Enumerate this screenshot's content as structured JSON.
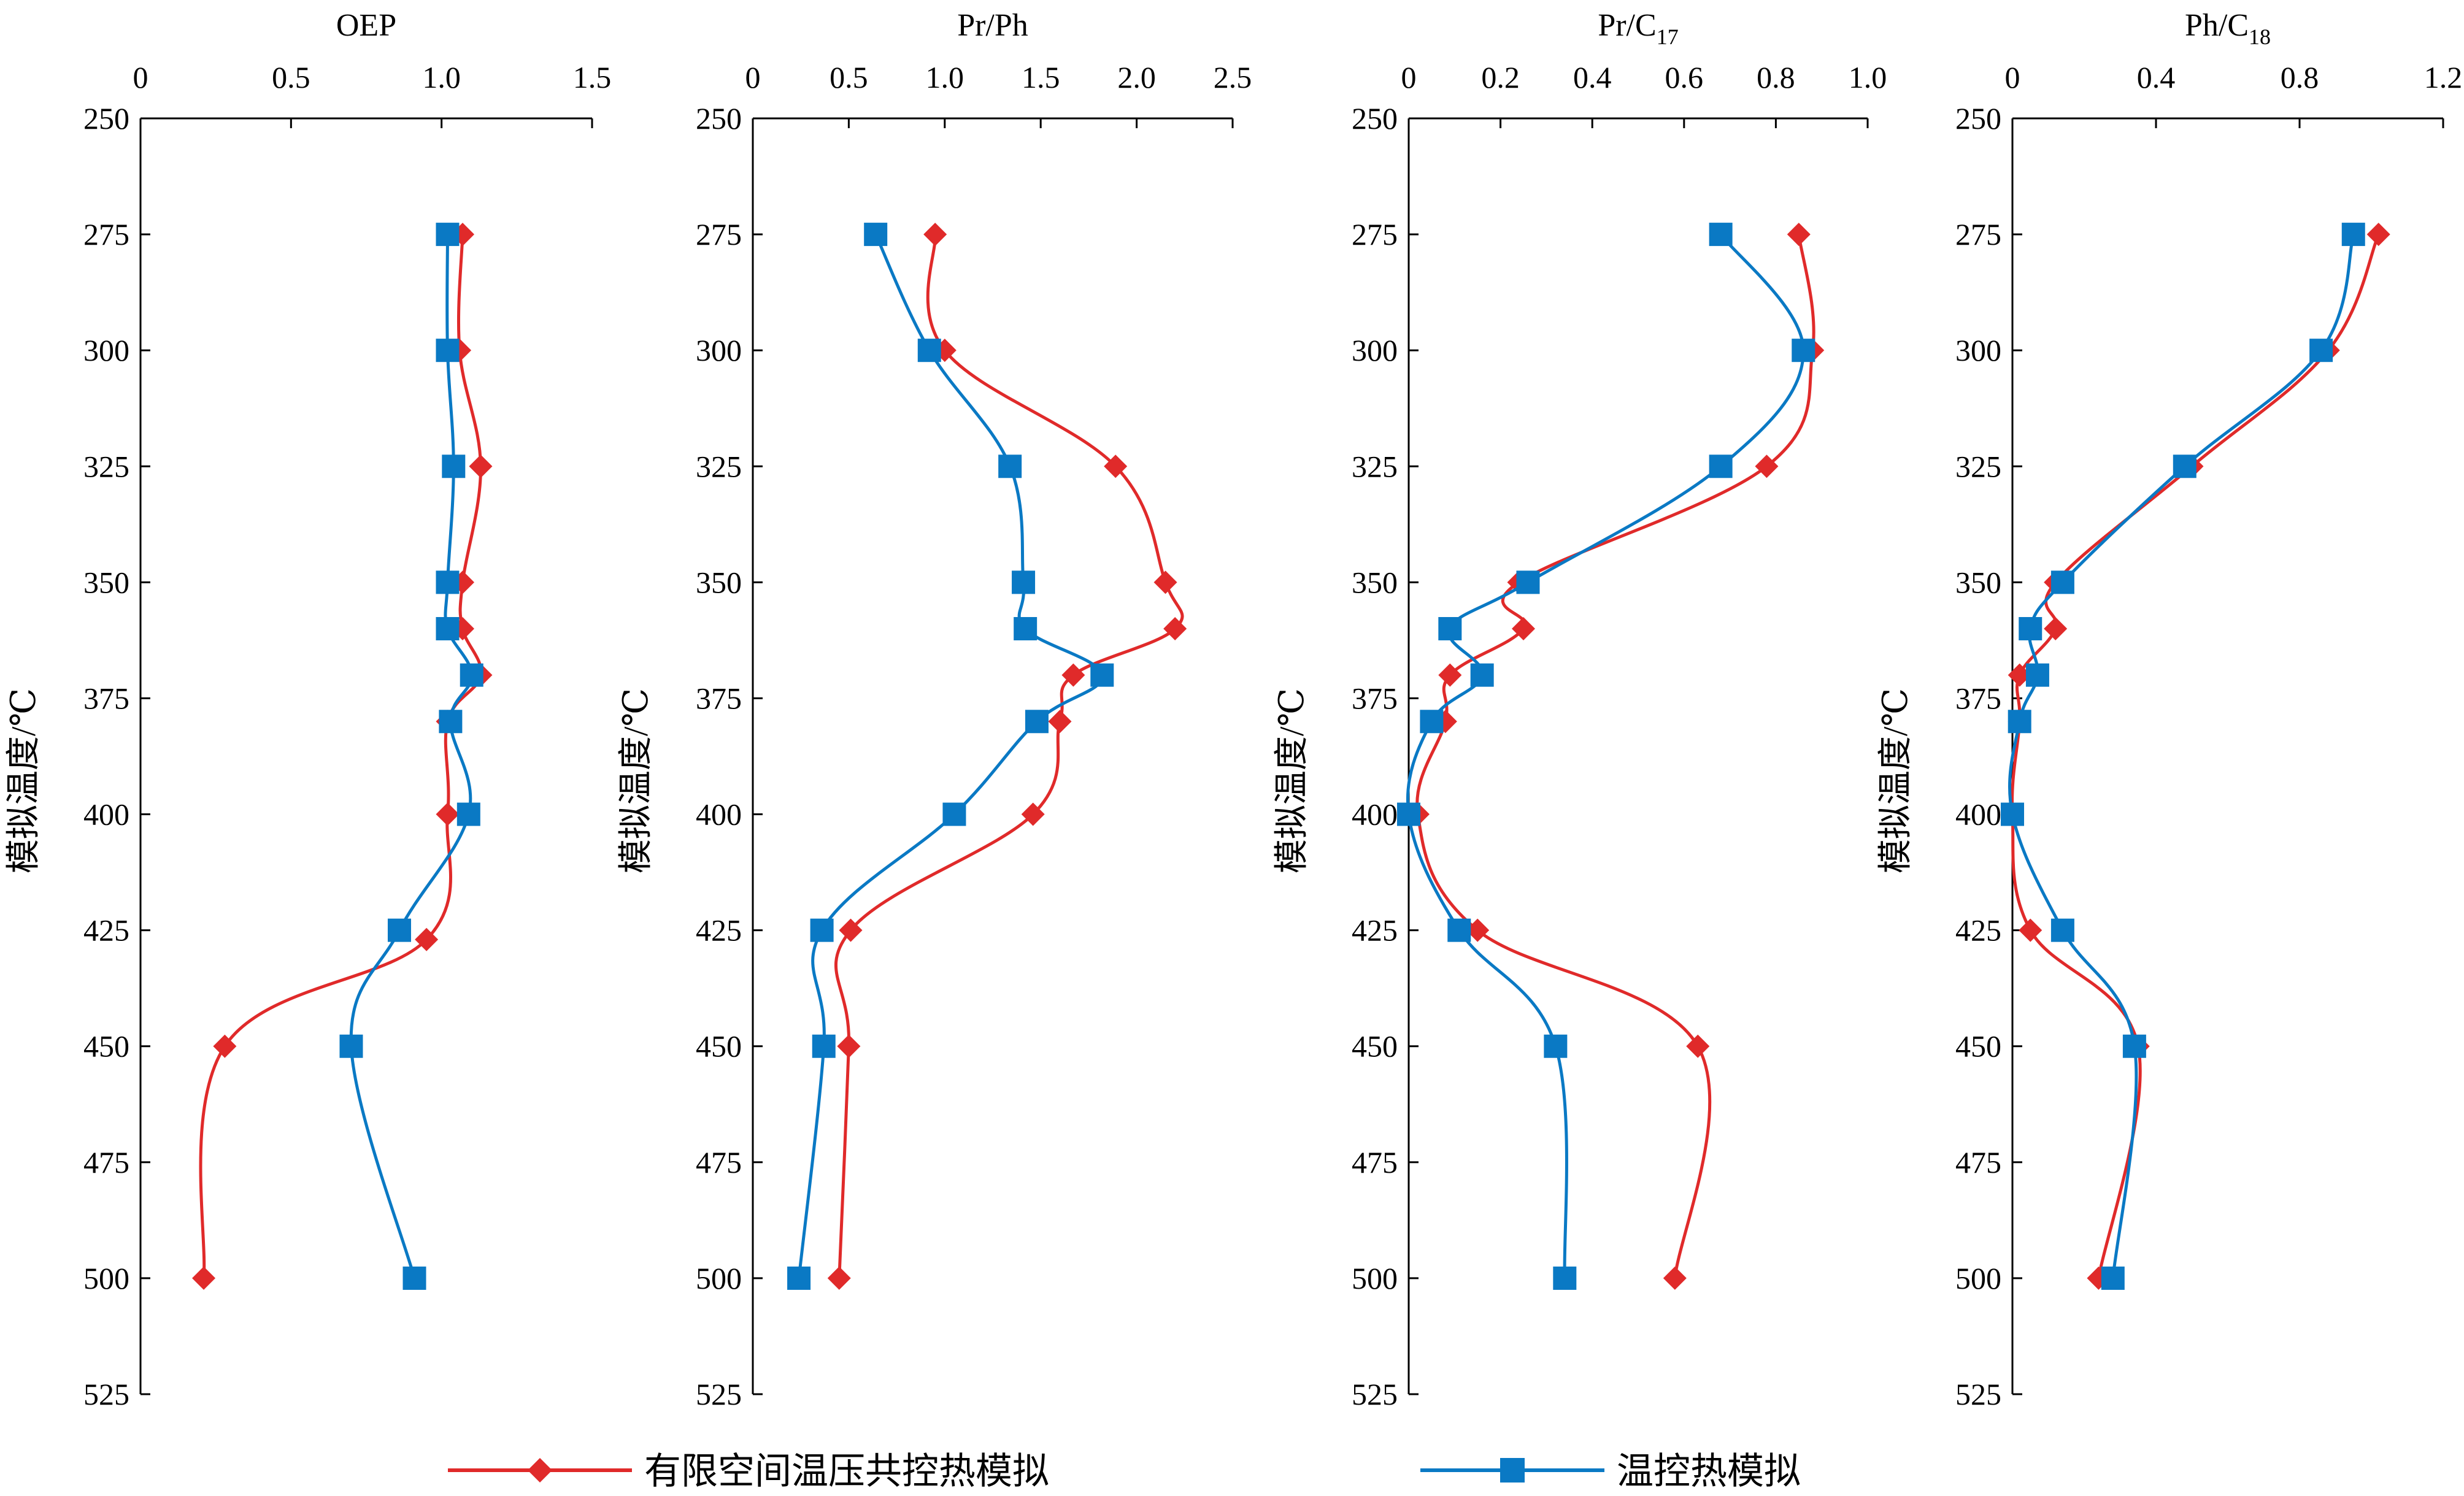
{
  "chart_data": {
    "type": "line",
    "y_axis": {
      "label": "模拟温度/℃",
      "range": [
        250,
        525
      ],
      "ticks": [
        250,
        275,
        300,
        325,
        350,
        375,
        400,
        425,
        450,
        475,
        500,
        525
      ],
      "reversed": true
    },
    "legend": {
      "placement": "bottom",
      "series": [
        {
          "name": "有限空间温压共控热模拟",
          "color": "#e02a2a",
          "marker": "diamond"
        },
        {
          "name": "温控热模拟",
          "color": "#0a79c4",
          "marker": "square"
        }
      ]
    },
    "panels": [
      {
        "title": "OEP",
        "title_sub": "",
        "xlim": [
          0,
          1.5
        ],
        "xticks": [
          0,
          0.5,
          1.0,
          1.5
        ],
        "xtick_labels": [
          "0",
          "0.5",
          "1.0",
          "1.5"
        ],
        "series": [
          {
            "temps": [
              275,
              300,
              325,
              350,
              360,
              370,
              380,
              400,
              427,
              450,
              500
            ],
            "values": [
              1.07,
              1.06,
              1.13,
              1.07,
              1.07,
              1.13,
              1.02,
              1.02,
              0.95,
              0.28,
              0.21
            ]
          },
          {
            "temps": [
              275,
              300,
              325,
              350,
              360,
              370,
              380,
              400,
              425,
              450,
              500
            ],
            "values": [
              1.02,
              1.02,
              1.04,
              1.02,
              1.02,
              1.1,
              1.03,
              1.09,
              0.86,
              0.7,
              0.91
            ]
          }
        ]
      },
      {
        "title": "Pr/Ph",
        "title_sub": "",
        "xlim": [
          0,
          2.5
        ],
        "xticks": [
          0,
          0.5,
          1.0,
          1.5,
          2.0,
          2.5
        ],
        "xtick_labels": [
          "0",
          "0.5",
          "1.0",
          "1.5",
          "2.0",
          "2.5"
        ],
        "series": [
          {
            "temps": [
              275,
              300,
              325,
              350,
              360,
              370,
              380,
              400,
              425,
              450,
              500
            ],
            "values": [
              0.95,
              1.0,
              1.89,
              2.15,
              2.2,
              1.67,
              1.6,
              1.46,
              0.51,
              0.5,
              0.45
            ]
          },
          {
            "temps": [
              275,
              300,
              325,
              350,
              360,
              370,
              380,
              400,
              425,
              450,
              500
            ],
            "values": [
              0.64,
              0.92,
              1.34,
              1.41,
              1.42,
              1.82,
              1.48,
              1.05,
              0.36,
              0.37,
              0.24
            ]
          }
        ]
      },
      {
        "title": "Pr/C",
        "title_sub": "17",
        "xlim": [
          0,
          1.0
        ],
        "xticks": [
          0,
          0.2,
          0.4,
          0.6,
          0.8,
          1.0
        ],
        "xtick_labels": [
          "0",
          "0.2",
          "0.4",
          "0.6",
          "0.8",
          "1.0"
        ],
        "series": [
          {
            "temps": [
              275,
              300,
              325,
              350,
              360,
              370,
              380,
              400,
              425,
              450,
              500
            ],
            "values": [
              0.85,
              0.88,
              0.78,
              0.24,
              0.25,
              0.09,
              0.08,
              0.02,
              0.15,
              0.63,
              0.58
            ]
          },
          {
            "temps": [
              275,
              300,
              325,
              350,
              360,
              370,
              380,
              400,
              425,
              450,
              500
            ],
            "values": [
              0.68,
              0.86,
              0.68,
              0.26,
              0.09,
              0.16,
              0.05,
              0.0,
              0.11,
              0.32,
              0.34
            ]
          }
        ]
      },
      {
        "title": "Ph/C",
        "title_sub": "18",
        "xlim": [
          0,
          1.2
        ],
        "xticks": [
          0,
          0.4,
          0.8,
          1.2
        ],
        "xtick_labels": [
          "0",
          "0.4",
          "0.8",
          "1.2"
        ],
        "series": [
          {
            "temps": [
              275,
              300,
              325,
              350,
              360,
              370,
              380,
              400,
              425,
              450,
              500
            ],
            "values": [
              1.02,
              0.88,
              0.5,
              0.12,
              0.12,
              0.02,
              0.02,
              0.0,
              0.05,
              0.35,
              0.24
            ]
          },
          {
            "temps": [
              275,
              300,
              325,
              350,
              360,
              370,
              380,
              400,
              425,
              450,
              500
            ],
            "values": [
              0.95,
              0.86,
              0.48,
              0.14,
              0.05,
              0.07,
              0.02,
              0.0,
              0.14,
              0.34,
              0.28
            ]
          }
        ]
      }
    ]
  }
}
